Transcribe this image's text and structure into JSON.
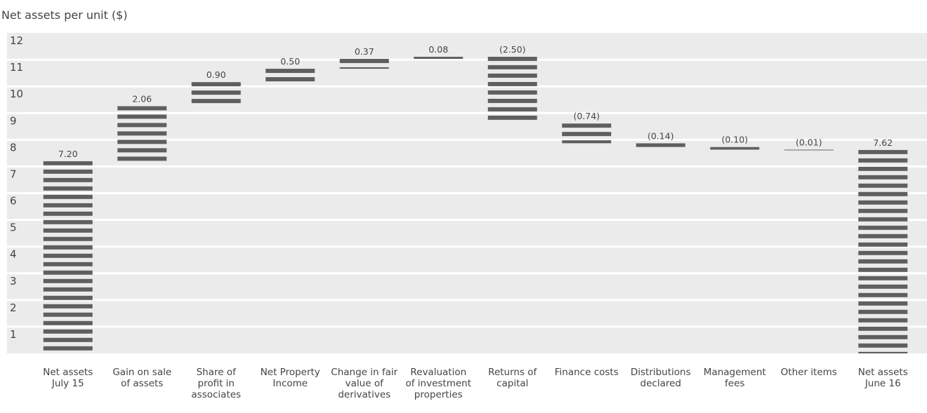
{
  "chart_data": {
    "type": "waterfall",
    "y_axis_label": "Net assets per unit ($)",
    "categories": [
      "Net assets July 15",
      "Gain on sale of assets",
      "Share of profit in associates",
      "Net Property Income",
      "Change in fair value of derivatives",
      "Revaluation of investment properties",
      "Returns of capital",
      "Finance costs",
      "Distributions declared",
      "Management fees",
      "Other items",
      "Net assets June 16"
    ],
    "values": [
      7.2,
      2.06,
      0.9,
      0.5,
      0.37,
      0.08,
      -2.5,
      -0.74,
      -0.14,
      -0.1,
      -0.01,
      7.62
    ],
    "value_labels": [
      "7.20",
      "2.06",
      "0.90",
      "0.50",
      "0.37",
      "0.08",
      "(2.50)",
      "(0.74)",
      "(0.14)",
      "(0.10)",
      "(0.01)",
      "7.62"
    ],
    "color": "#5f5f5f",
    "ylim": [
      0,
      12
    ],
    "yticks": [
      1,
      2,
      3,
      4,
      5,
      6,
      7,
      8,
      9,
      10,
      11,
      12
    ],
    "grid": true
  }
}
